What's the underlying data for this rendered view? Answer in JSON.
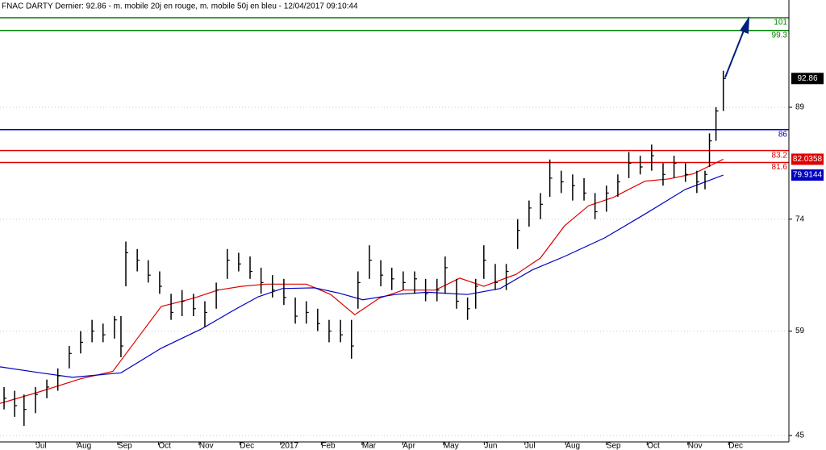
{
  "chart_data": {
    "type": "ohlc",
    "title": "FNAC DARTY Dernier: 92.86 - m. mobile 20j en rouge, m. mobile 50j en bleu - 12/04/2017 09:10:44",
    "bar_color": "#000000",
    "x": [
      0.21,
      0.47,
      0.7,
      0.98,
      1.26,
      1.53,
      1.81,
      2.09,
      2.37,
      2.64,
      2.92,
      3.08,
      3.2,
      3.48,
      3.75,
      4.03,
      4.31,
      4.58,
      4.86,
      5.14,
      5.42,
      5.69,
      5.97,
      6.25,
      6.52,
      6.8,
      7.08,
      7.36,
      7.63,
      7.91,
      8.19,
      8.47,
      8.74,
      8.9,
      9.18,
      9.46,
      9.73,
      10.01,
      10.29,
      10.56,
      10.84,
      11.04,
      11.32,
      11.59,
      11.79,
      11.99,
      12.27,
      12.54,
      12.82,
      13.1,
      13.38,
      13.61,
      13.89,
      14.17,
      14.45,
      14.72,
      15.0,
      15.28,
      15.55,
      15.83,
      16.11,
      16.39,
      16.66,
      16.94,
      17.22,
      17.42,
      17.53,
      17.69,
      17.87
    ],
    "high": [
      51.5,
      51,
      50.5,
      51.5,
      52.5,
      54,
      57,
      59,
      60.5,
      60,
      61,
      61,
      71,
      70,
      68.5,
      67,
      64,
      64.5,
      64,
      63,
      65.5,
      70,
      69.5,
      69,
      67.5,
      66.5,
      66,
      63.5,
      63,
      62,
      60.5,
      60.5,
      60.5,
      67,
      70.5,
      68.5,
      67.5,
      67,
      67,
      66,
      66,
      69,
      66,
      63.5,
      66,
      70.5,
      68,
      68,
      74,
      76.5,
      77.5,
      82,
      80.5,
      80,
      79.5,
      77.5,
      78.5,
      80,
      83,
      82.5,
      84,
      81.5,
      82.5,
      81.5,
      80.5,
      80.5,
      85.5,
      89,
      93.9
    ],
    "low": [
      48.5,
      47.5,
      46.3,
      48,
      50,
      51,
      54,
      56,
      57.5,
      57.5,
      58,
      55.5,
      65,
      67,
      65.5,
      64,
      60.5,
      61,
      61,
      59.5,
      62,
      66,
      67,
      66,
      64,
      63.5,
      62.5,
      60,
      60,
      59,
      57.5,
      57.5,
      55.3,
      62,
      66,
      65,
      64.5,
      64.5,
      64,
      63,
      63,
      64,
      62,
      60.5,
      62,
      66,
      64.5,
      64.5,
      70,
      73,
      74,
      77,
      77.5,
      76.5,
      76.5,
      74,
      75,
      77,
      79.5,
      80,
      80.5,
      78.5,
      79.5,
      79,
      77.5,
      78,
      81,
      84.5,
      88.5
    ],
    "close": [
      50,
      49,
      48.5,
      50.5,
      51.5,
      53,
      56,
      57.5,
      59,
      58.5,
      60.5,
      57,
      69.5,
      68.5,
      66.5,
      65,
      61.5,
      63,
      62,
      61.5,
      64.5,
      68.5,
      68,
      67,
      65.5,
      64.5,
      63.5,
      61,
      61.5,
      60,
      59,
      58.5,
      57,
      65.5,
      68.5,
      66.5,
      66,
      65.5,
      66,
      64,
      64.5,
      67.5,
      63,
      62,
      65,
      68.5,
      65.5,
      67,
      72.5,
      75.5,
      76,
      79.5,
      79,
      78.5,
      77.5,
      75,
      77.5,
      79,
      81.5,
      81,
      82.5,
      80,
      81.5,
      80,
      79,
      80,
      84.5,
      88.5,
      92.86
    ],
    "lines": [
      {
        "color": "#e00000",
        "x": [
          0.11,
          1.1,
          2.09,
          2.88,
          3.48,
          4.07,
          4.86,
          5.46,
          6.05,
          6.64,
          7.63,
          8.23,
          8.82,
          9.42,
          10.01,
          10.8,
          11.4,
          11.99,
          12.78,
          13.38,
          13.97,
          14.56,
          15.16,
          15.55,
          15.95,
          16.54,
          17.14,
          17.87
        ],
        "values": [
          49.3,
          50.9,
          52.6,
          53.6,
          58.0,
          62.3,
          63.4,
          64.5,
          65.0,
          65.3,
          65.3,
          63.9,
          61.2,
          63.4,
          64.5,
          64.5,
          66.1,
          65.0,
          66.6,
          68.8,
          73.1,
          75.8,
          76.9,
          78.0,
          79.1,
          79.4,
          80.1,
          82.0358
        ]
      },
      {
        "color": "#0000c0",
        "x": [
          0.11,
          1.1,
          1.89,
          3.08,
          4.07,
          5.06,
          5.85,
          6.45,
          7.04,
          7.83,
          8.43,
          9.02,
          9.81,
          10.6,
          11.59,
          12.39,
          13.18,
          13.97,
          14.96,
          15.95,
          16.94,
          17.87
        ],
        "values": [
          54.2,
          53.4,
          52.8,
          53.4,
          56.7,
          59.3,
          61.8,
          63.6,
          64.7,
          64.8,
          64.1,
          63.2,
          63.9,
          64.2,
          63.9,
          64.7,
          67.2,
          69.0,
          71.5,
          74.7,
          78.0,
          79.9144
        ]
      }
    ],
    "hlines": [
      {
        "value": 101,
        "color": "#008000"
      },
      {
        "value": 99.3,
        "color": "#008000"
      },
      {
        "value": 86,
        "color": "#0000c0"
      },
      {
        "value": 83.2,
        "color": "#e00000"
      },
      {
        "value": 81.6,
        "color": "#e00000"
      }
    ],
    "xlim": [
      0.11,
      19.48
    ],
    "xticks": [
      {
        "value": 1,
        "label": "Jul"
      },
      {
        "value": 2,
        "label": "Aug"
      },
      {
        "value": 3,
        "label": "Sep"
      },
      {
        "value": 4,
        "label": "Oct"
      },
      {
        "value": 5,
        "label": "Nov"
      },
      {
        "value": 6,
        "label": "Dec"
      },
      {
        "value": 7,
        "label": "2017"
      },
      {
        "value": 8,
        "label": "Feb"
      },
      {
        "value": 9,
        "label": "Mar"
      },
      {
        "value": 10,
        "label": "Apr"
      },
      {
        "value": 11,
        "label": "May"
      },
      {
        "value": 12,
        "label": "Jun"
      },
      {
        "value": 13,
        "label": "Jul"
      },
      {
        "value": 14,
        "label": "Aug"
      },
      {
        "value": 15,
        "label": "Sep"
      },
      {
        "value": 16,
        "label": "Oct"
      },
      {
        "value": 17,
        "label": "Nov"
      },
      {
        "value": 18,
        "label": "Dec"
      }
    ],
    "ylim": [
      44.14,
      103.38
    ],
    "yticks": [
      45,
      59,
      74,
      89
    ],
    "grid": true
  }
}
